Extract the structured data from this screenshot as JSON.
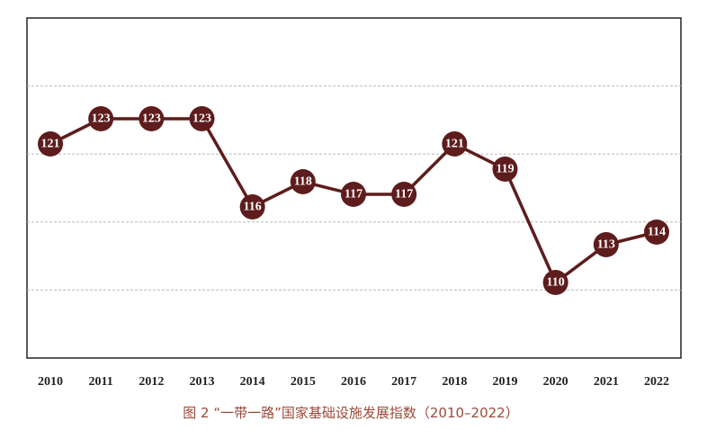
{
  "chart_data": {
    "type": "line",
    "caption": "图 2 “一带一路”国家基础设施发展指数（2010–2022）",
    "categories": [
      "2010",
      "2011",
      "2012",
      "2013",
      "2014",
      "2015",
      "2016",
      "2017",
      "2018",
      "2019",
      "2020",
      "2021",
      "2022"
    ],
    "values": [
      121,
      123,
      123,
      123,
      116,
      118,
      117,
      117,
      121,
      119,
      110,
      113,
      114
    ],
    "color": "#5e1c1c",
    "ylim": [
      104,
      131
    ],
    "grid": true
  }
}
